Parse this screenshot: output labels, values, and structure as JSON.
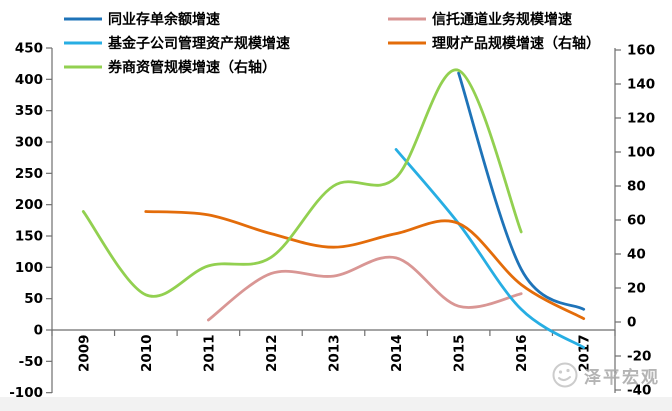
{
  "watermark": {
    "text": "泽平宏观",
    "logo": "wechat-smiley-logo"
  },
  "chart_data": {
    "type": "line",
    "smooth": true,
    "grid": false,
    "legend_position": "top",
    "title": "",
    "categories": [
      "2009",
      "2010",
      "2011",
      "2012",
      "2013",
      "2014",
      "2015",
      "2016",
      "2017"
    ],
    "left_axis": {
      "min": -100,
      "max": 450,
      "step": 50,
      "ticks": [
        450,
        400,
        350,
        300,
        250,
        200,
        150,
        100,
        50,
        0,
        -50,
        -100
      ]
    },
    "right_axis": {
      "min": -40,
      "max": 160,
      "step": 20,
      "ticks": [
        160,
        140,
        120,
        100,
        80,
        60,
        40,
        20,
        0,
        -20,
        -40
      ]
    },
    "series": [
      {
        "name": "同业存单余额增速",
        "axis": "left",
        "color": "#1E73B8",
        "values": [
          null,
          null,
          null,
          null,
          null,
          null,
          410,
          97,
          33
        ]
      },
      {
        "name": "信托通道业务规模增速",
        "axis": "left",
        "color": "#D99694",
        "values": [
          null,
          null,
          16,
          90,
          86,
          115,
          38,
          58,
          null
        ]
      },
      {
        "name": "基金子公司管理资产规模增速",
        "axis": "left",
        "color": "#27AEE3",
        "values": [
          null,
          null,
          null,
          null,
          null,
          288,
          170,
          33,
          -28
        ]
      },
      {
        "name": "理财产品规模增速（右轴）",
        "axis": "right",
        "color": "#E36C0A",
        "values": [
          null,
          65,
          63,
          52,
          44,
          52,
          58,
          22,
          2
        ]
      },
      {
        "name": "券商资管规模增速（右轴）",
        "axis": "right",
        "color": "#92D050",
        "values": [
          65,
          16,
          33,
          38,
          80,
          85,
          148,
          53,
          null
        ]
      }
    ],
    "legend_rows": [
      [
        0,
        1
      ],
      [
        2,
        3
      ],
      [
        4
      ]
    ],
    "axis_color": "#6e6e6e",
    "tick_label_color": "#000000"
  }
}
